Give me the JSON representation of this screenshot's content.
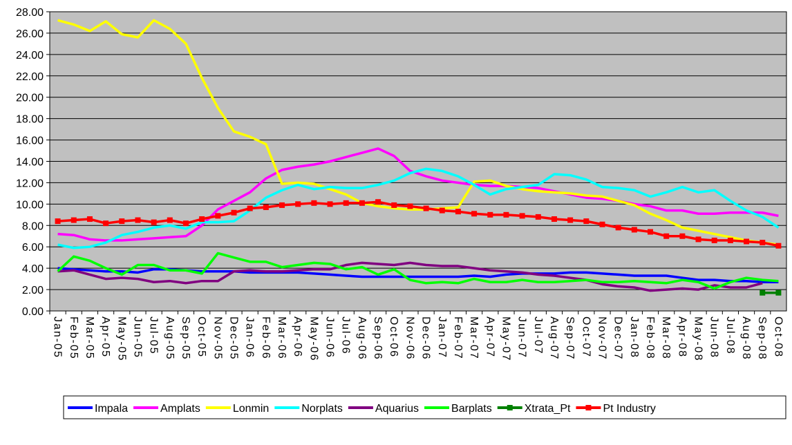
{
  "chart_data": {
    "type": "line",
    "categories": [
      "Jan-05",
      "Feb-05",
      "Mar-05",
      "Apr-05",
      "May-05",
      "Jun-05",
      "Jul-05",
      "Aug-05",
      "Sep-05",
      "Oct-05",
      "Nov-05",
      "Dec-05",
      "Jan-06",
      "Feb-06",
      "Mar-06",
      "Apr-06",
      "May-06",
      "Jun-06",
      "Jul-06",
      "Aug-06",
      "Sep-06",
      "Oct-06",
      "Nov-06",
      "Dec-06",
      "Jan-07",
      "Feb-07",
      "Mar-07",
      "Apr-07",
      "May-07",
      "Jun-07",
      "Jul-07",
      "Aug-07",
      "Sep-07",
      "Oct-07",
      "Nov-07",
      "Dec-07",
      "Jan-08",
      "Feb-08",
      "Mar-08",
      "Apr-08",
      "May-08",
      "Jun-08",
      "Jul-08",
      "Aug-08",
      "Sep-08",
      "Oct-08"
    ],
    "series": [
      {
        "name": "Impala",
        "color": "#0000ff",
        "values": [
          4.0,
          3.9,
          3.8,
          3.7,
          3.7,
          3.6,
          3.9,
          3.9,
          3.8,
          3.7,
          3.7,
          3.7,
          3.6,
          3.6,
          3.6,
          3.6,
          3.5,
          3.4,
          3.3,
          3.2,
          3.2,
          3.2,
          3.2,
          3.2,
          3.2,
          3.2,
          3.3,
          3.2,
          3.4,
          3.5,
          3.5,
          3.5,
          3.6,
          3.6,
          3.5,
          3.4,
          3.3,
          3.3,
          3.3,
          3.1,
          2.9,
          2.9,
          2.8,
          2.8,
          2.7,
          2.7
        ]
      },
      {
        "name": "Amplats",
        "color": "#ff00ff",
        "values": [
          7.2,
          7.1,
          6.7,
          6.6,
          6.6,
          6.7,
          6.8,
          6.9,
          7.0,
          8.0,
          9.5,
          10.3,
          11.1,
          12.4,
          13.2,
          13.5,
          13.7,
          14.0,
          14.4,
          14.8,
          15.2,
          14.5,
          13.1,
          12.6,
          12.2,
          12.0,
          11.8,
          11.7,
          11.7,
          11.6,
          11.5,
          11.2,
          10.9,
          10.6,
          10.5,
          10.3,
          10.0,
          9.8,
          9.4,
          9.4,
          9.1,
          9.1,
          9.2,
          9.2,
          9.2,
          8.9
        ]
      },
      {
        "name": "Lonmin",
        "color": "#ffff00",
        "values": [
          27.2,
          26.8,
          26.2,
          27.1,
          25.9,
          25.6,
          27.2,
          26.4,
          25.0,
          21.8,
          19.0,
          16.8,
          16.3,
          15.6,
          11.9,
          12.0,
          11.9,
          11.4,
          10.9,
          10.1,
          9.8,
          9.6,
          9.5,
          9.5,
          9.6,
          9.7,
          12.1,
          12.2,
          11.7,
          11.4,
          11.2,
          11.1,
          11.0,
          10.8,
          10.7,
          10.3,
          9.9,
          9.1,
          8.5,
          7.8,
          7.5,
          7.2,
          6.9,
          6.6,
          6.4,
          6.2
        ]
      },
      {
        "name": "Norplats",
        "color": "#00ffff",
        "values": [
          6.2,
          5.9,
          6.0,
          6.4,
          7.1,
          7.4,
          7.8,
          8.0,
          7.7,
          8.3,
          8.3,
          8.4,
          9.4,
          10.6,
          11.3,
          11.8,
          11.4,
          11.6,
          11.5,
          11.5,
          11.8,
          12.2,
          12.9,
          13.3,
          13.1,
          12.6,
          11.8,
          10.9,
          11.4,
          11.6,
          11.8,
          12.8,
          12.7,
          12.3,
          11.6,
          11.5,
          11.3,
          10.7,
          11.1,
          11.6,
          11.1,
          11.3,
          10.3,
          9.4,
          8.8,
          7.8
        ]
      },
      {
        "name": "Aquarius",
        "color": "#800080",
        "values": [
          3.7,
          3.8,
          3.4,
          3.0,
          3.1,
          3.0,
          2.7,
          2.8,
          2.6,
          2.8,
          2.8,
          3.7,
          3.8,
          3.7,
          3.7,
          3.8,
          3.9,
          3.9,
          4.3,
          4.5,
          4.4,
          4.3,
          4.5,
          4.3,
          4.2,
          4.2,
          4.0,
          3.8,
          3.7,
          3.6,
          3.4,
          3.3,
          3.1,
          2.9,
          2.5,
          2.3,
          2.2,
          1.9,
          2.0,
          2.1,
          2.0,
          2.4,
          2.2,
          2.2,
          2.6,
          null
        ]
      },
      {
        "name": "Barplats",
        "color": "#00ff00",
        "values": [
          3.7,
          5.1,
          4.7,
          4.0,
          3.4,
          4.3,
          4.3,
          3.8,
          3.8,
          3.5,
          5.4,
          5.0,
          4.6,
          4.6,
          4.1,
          4.3,
          4.5,
          4.4,
          3.9,
          4.1,
          3.4,
          3.9,
          2.9,
          2.6,
          2.7,
          2.6,
          3.0,
          2.7,
          2.7,
          2.9,
          2.7,
          2.7,
          2.8,
          2.9,
          2.7,
          2.7,
          2.8,
          2.7,
          2.6,
          2.9,
          2.7,
          2.1,
          2.7,
          3.1,
          2.9,
          2.8
        ]
      },
      {
        "name": "Xtrata_Pt",
        "color": "#008000",
        "marker": "square",
        "values": [
          null,
          null,
          null,
          null,
          null,
          null,
          null,
          null,
          null,
          null,
          null,
          null,
          null,
          null,
          null,
          null,
          null,
          null,
          null,
          null,
          null,
          null,
          null,
          null,
          null,
          null,
          null,
          null,
          null,
          null,
          null,
          null,
          null,
          null,
          null,
          null,
          null,
          null,
          null,
          null,
          null,
          null,
          null,
          null,
          1.7,
          1.7
        ]
      },
      {
        "name": "Pt Industry",
        "color": "#ff0000",
        "marker": "square",
        "values": [
          8.4,
          8.5,
          8.6,
          8.2,
          8.4,
          8.5,
          8.3,
          8.5,
          8.2,
          8.6,
          8.9,
          9.2,
          9.6,
          9.7,
          9.9,
          10.0,
          10.1,
          10.0,
          10.1,
          10.1,
          10.2,
          9.9,
          9.8,
          9.6,
          9.4,
          9.3,
          9.1,
          9.0,
          9.0,
          8.9,
          8.8,
          8.6,
          8.5,
          8.4,
          8.1,
          7.8,
          7.6,
          7.4,
          7.0,
          7.0,
          6.7,
          6.6,
          6.6,
          6.5,
          6.4,
          6.1
        ]
      }
    ],
    "ylim": [
      0,
      28
    ],
    "yticks": [
      {
        "value": 0,
        "label": "0.00"
      },
      {
        "value": 2,
        "label": "2.00"
      },
      {
        "value": 4,
        "label": "4.00"
      },
      {
        "value": 6,
        "label": "6.00"
      },
      {
        "value": 8,
        "label": "8.00"
      },
      {
        "value": 10,
        "label": "10.00"
      },
      {
        "value": 12,
        "label": "12.00"
      },
      {
        "value": 14,
        "label": "14.00"
      },
      {
        "value": 16,
        "label": "16.00"
      },
      {
        "value": 18,
        "label": "18.00"
      },
      {
        "value": 20,
        "label": "20.00"
      },
      {
        "value": 22,
        "label": "22.00"
      },
      {
        "value": 24,
        "label": "24.00"
      },
      {
        "value": 26,
        "label": "26.00"
      },
      {
        "value": 28,
        "label": "28.00"
      }
    ],
    "grid": true,
    "legend": "bottom"
  }
}
